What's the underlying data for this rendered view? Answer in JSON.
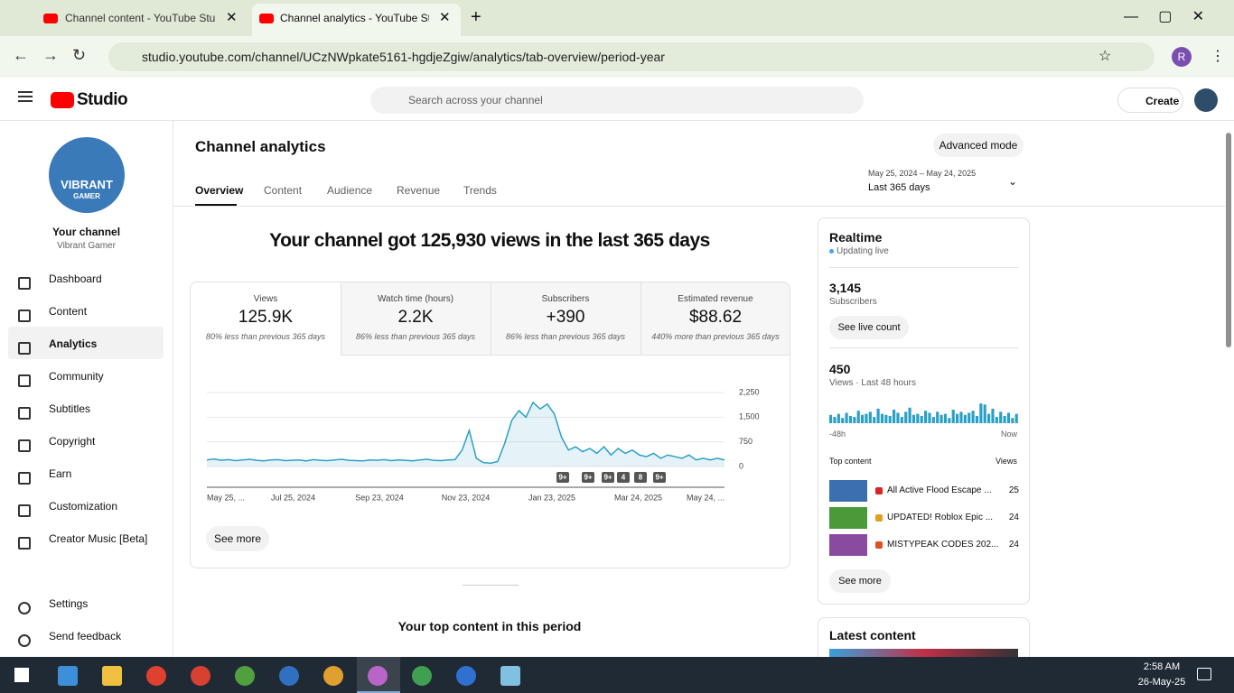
{
  "browser": {
    "tabs": [
      "Channel content - YouTube Stu",
      "Channel analytics - YouTube Stu"
    ],
    "url": "studio.youtube.com/channel/UCzNWpkate5161-hgdjeZgiw/analytics/tab-overview/period-year",
    "profile": "R"
  },
  "header": {
    "logo": "Studio",
    "search_placeholder": "Search across your channel",
    "create": "Create"
  },
  "sidebar": {
    "avatar": [
      "VIBRANT",
      "GAMER"
    ],
    "title": "Your channel",
    "channel": "Vibrant Gamer",
    "nav": [
      "Dashboard",
      "Content",
      "Analytics",
      "Community",
      "Subtitles",
      "Copyright",
      "Earn",
      "Customization",
      "Creator Music [Beta]"
    ],
    "footer": [
      "Settings",
      "Send feedback"
    ]
  },
  "page": {
    "title": "Channel analytics",
    "advanced": "Advanced mode",
    "tabs": [
      "Overview",
      "Content",
      "Audience",
      "Revenue",
      "Trends"
    ],
    "date_range": "May 25, 2024 – May 24, 2025",
    "period": "Last 365 days",
    "headline": "Your channel got 125,930 views in the last 365 days",
    "metrics": [
      {
        "label": "Views",
        "value": "125.9K",
        "note": "80% less than previous 365 days"
      },
      {
        "label": "Watch time (hours)",
        "value": "2.2K",
        "note": "86% less than previous 365 days"
      },
      {
        "label": "Subscribers",
        "value": "+390",
        "note": "86% less than previous 365 days"
      },
      {
        "label": "Estimated revenue",
        "value": "$88.62",
        "note": "440% more than previous 365 days"
      }
    ],
    "see_more": "See more",
    "top_content_heading": "Your top content in this period"
  },
  "chart_data": {
    "type": "line",
    "color": "#2ba0c7",
    "x_labels": [
      "May 25, ...",
      "Jul 25, 2024",
      "Sep 23, 2024",
      "Nov 23, 2024",
      "Jan 23, 2025",
      "Mar 24, 2025",
      "May 24, ..."
    ],
    "values": [
      200,
      230,
      190,
      210,
      180,
      200,
      220,
      190,
      170,
      200,
      210,
      180,
      190,
      200,
      170,
      210,
      190,
      180,
      200,
      220,
      190,
      180,
      170,
      200,
      190,
      210,
      180,
      200,
      190,
      170,
      200,
      220,
      190,
      180,
      200,
      210,
      500,
      1100,
      250,
      120,
      100,
      150,
      700,
      1400,
      1700,
      1500,
      1950,
      1750,
      1900,
      1600,
      900,
      500,
      600,
      450,
      550,
      400,
      600,
      350,
      550,
      400,
      500,
      350,
      300,
      400,
      250,
      350,
      300,
      250,
      350,
      200,
      250,
      200,
      250,
      200
    ],
    "ylim": [
      0,
      2250
    ],
    "yticks": [
      0,
      750,
      {
        "value": 1500,
        "label": "1,500"
      },
      {
        "value": 2250,
        "label": "2,250"
      }
    ],
    "grid": true,
    "annotations": [
      "9+",
      "9+",
      "9+",
      "4",
      "8",
      "9+"
    ]
  },
  "realtime": {
    "title": "Realtime",
    "status": "Updating live",
    "subscribers": "3,145",
    "subscribers_label": "Subscribers",
    "live_count": "See live count",
    "views": 450,
    "views_label": "Views · Last 48 hours",
    "bar_color": "#2ba0c7",
    "bars": [
      8,
      6,
      9,
      5,
      10,
      7,
      6,
      12,
      8,
      9,
      11,
      6,
      14,
      9,
      8,
      7,
      13,
      10,
      6,
      11,
      15,
      8,
      9,
      7,
      12,
      10,
      6,
      11,
      8,
      9,
      5,
      13,
      9,
      11,
      8,
      10,
      12,
      7,
      19,
      18,
      9,
      14,
      6,
      11,
      7,
      10,
      5,
      9
    ],
    "start": "-48h",
    "end": "Now",
    "top_content": "Top content",
    "views_header": "Views",
    "items": [
      {
        "title": "All Active Flood Escape ...",
        "views": 25
      },
      {
        "title": "UPDATED! Roblox Epic ...",
        "views": 24
      },
      {
        "title": "MISTYPEAK CODES 202...",
        "views": 24
      }
    ],
    "see_more": "See more",
    "latest": "Latest content"
  },
  "taskbar": {
    "time": "2:58 AM",
    "date": "26-May-25"
  }
}
